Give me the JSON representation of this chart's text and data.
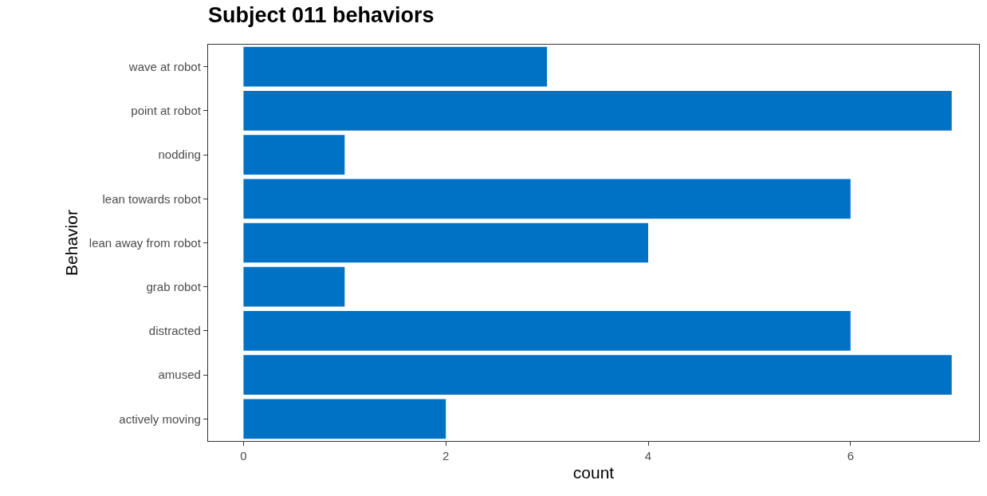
{
  "chart_data": {
    "type": "bar",
    "orientation": "horizontal",
    "title": "Subject 011 behaviors",
    "xlabel": "count",
    "ylabel": "Behavior",
    "categories": [
      "wave at robot",
      "point at robot",
      "nodding",
      "lean towards robot",
      "lean away from robot",
      "grab robot",
      "distracted",
      "amused",
      "actively moving"
    ],
    "values": [
      3,
      7,
      1,
      6,
      4,
      1,
      6,
      7,
      2
    ],
    "color": "#0072c6",
    "xlim": [
      -0.35,
      7.27
    ],
    "xticks": [
      0,
      2,
      4,
      6
    ],
    "grid": false
  }
}
